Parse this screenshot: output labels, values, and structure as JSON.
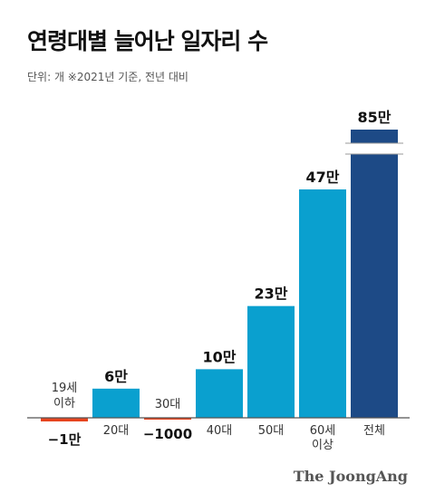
{
  "title": "연령대별 늘어난 일자리 수",
  "subtitle": "단위: 개  ※2021년 기준, 전년 대비",
  "brand": "The JoongAng",
  "chart_data": {
    "type": "bar",
    "categories": [
      "19세\n이하",
      "20대",
      "30대",
      "40대",
      "50대",
      "60세\n이상",
      "전체"
    ],
    "values": [
      -10000,
      60000,
      -1000,
      100000,
      230000,
      470000,
      850000
    ],
    "value_labels": [
      "−1만",
      "6만",
      "30대\n−1000",
      "10만",
      "23만",
      "47만",
      "85만"
    ],
    "axis_break": true,
    "colors": {
      "positive": "#0aa0cf",
      "negative": "#e8441e",
      "total": "#1d4a86",
      "baseline": "#555555",
      "break": "#999999"
    }
  }
}
